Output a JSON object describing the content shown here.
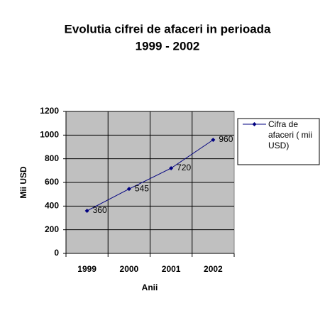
{
  "chart_data": {
    "type": "line",
    "title": [
      "Evolutia cifrei de afaceri in perioada",
      "1999 - 2002"
    ],
    "x_label": "Anii",
    "y_label": "Mii USD",
    "categories": [
      "1999",
      "2000",
      "2001",
      "2002"
    ],
    "series": [
      {
        "name": "Cifra de afaceri ( mii USD)",
        "color": "#000080",
        "values": [
          360,
          545,
          720,
          960
        ]
      }
    ],
    "ylim": [
      0,
      1200
    ],
    "yticks": [
      0,
      200,
      400,
      600,
      800,
      1000,
      1200
    ],
    "grid": true,
    "legend": "right",
    "plot_background": "#c0c0c0"
  }
}
